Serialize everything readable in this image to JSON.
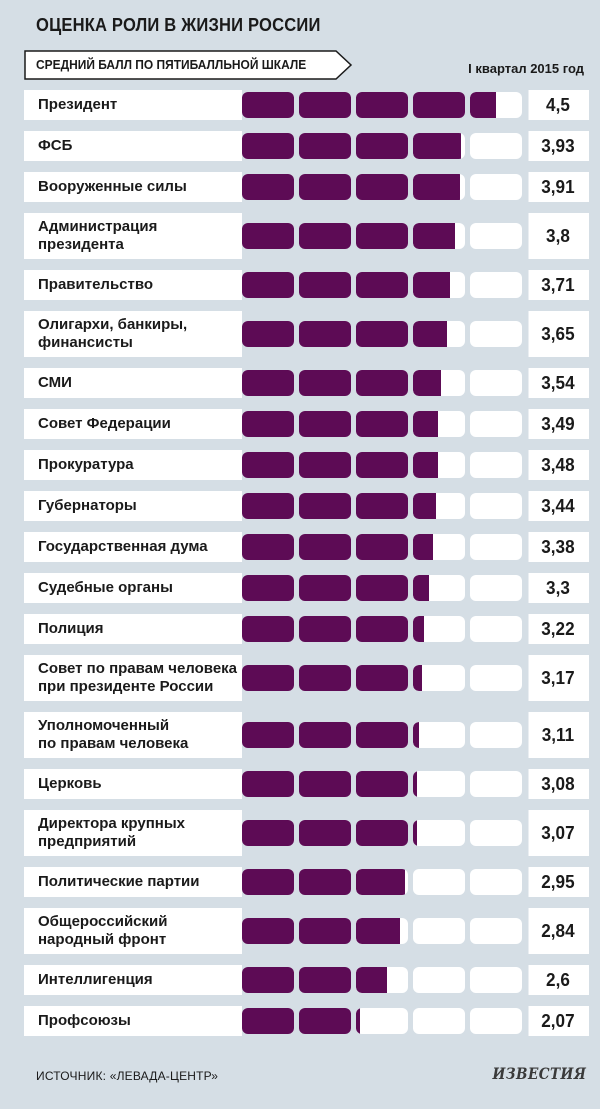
{
  "title": "ОЦЕНКА РОЛИ В ЖИЗНИ РОССИИ",
  "subtitle": "СРЕДНИЙ БАЛЛ ПО ПЯТИБАЛЛЬНОЙ ШКАЛЕ",
  "period": "I квартал 2015 год",
  "source": "ИСТОЧНИК: «ЛЕВАДА-ЦЕНТР»",
  "logo": "ИЗВЕСТИЯ",
  "colors": {
    "background": "#d5dee5",
    "bar": "#5d0b55",
    "empty": "#ffffff"
  },
  "chart_data": {
    "type": "bar",
    "orientation": "horizontal",
    "scale_max": 5,
    "title": "ОЦЕНКА РОЛИ В ЖИЗНИ РОССИИ",
    "subtitle": "СРЕДНИЙ БАЛЛ ПО ПЯТИБАЛЛЬНОЙ ШКАЛЕ",
    "categories": [
      [
        "Президент"
      ],
      [
        "ФСБ"
      ],
      [
        "Вооруженные силы"
      ],
      [
        "Администрация",
        "президента"
      ],
      [
        "Правительство"
      ],
      [
        "Олигархи, банкиры,",
        "финансисты"
      ],
      [
        "СМИ"
      ],
      [
        "Совет Федерации"
      ],
      [
        "Прокуратура"
      ],
      [
        "Губернаторы"
      ],
      [
        "Государственная дума"
      ],
      [
        "Судебные органы"
      ],
      [
        "Полиция"
      ],
      [
        "Совет по правам человека",
        "при президенте России"
      ],
      [
        "Уполномоченный",
        "по правам человека"
      ],
      [
        "Церковь"
      ],
      [
        "Директора крупных",
        "предприятий"
      ],
      [
        "Политические партии"
      ],
      [
        "Общероссийский",
        "народный фронт"
      ],
      [
        "Интеллигенция"
      ],
      [
        "Профсоюзы"
      ]
    ],
    "values": [
      4.5,
      3.93,
      3.91,
      3.8,
      3.71,
      3.65,
      3.54,
      3.49,
      3.48,
      3.44,
      3.38,
      3.3,
      3.22,
      3.17,
      3.11,
      3.08,
      3.07,
      2.95,
      2.84,
      2.6,
      2.07
    ],
    "value_labels": [
      "4,5",
      "3,93",
      "3,91",
      "3,8",
      "3,71",
      "3,65",
      "3,54",
      "3,49",
      "3,48",
      "3,44",
      "3,38",
      "3,3",
      "3,22",
      "3,17",
      "3,11",
      "3,08",
      "3,07",
      "2,95",
      "2,84",
      "2,6",
      "2,07"
    ]
  }
}
